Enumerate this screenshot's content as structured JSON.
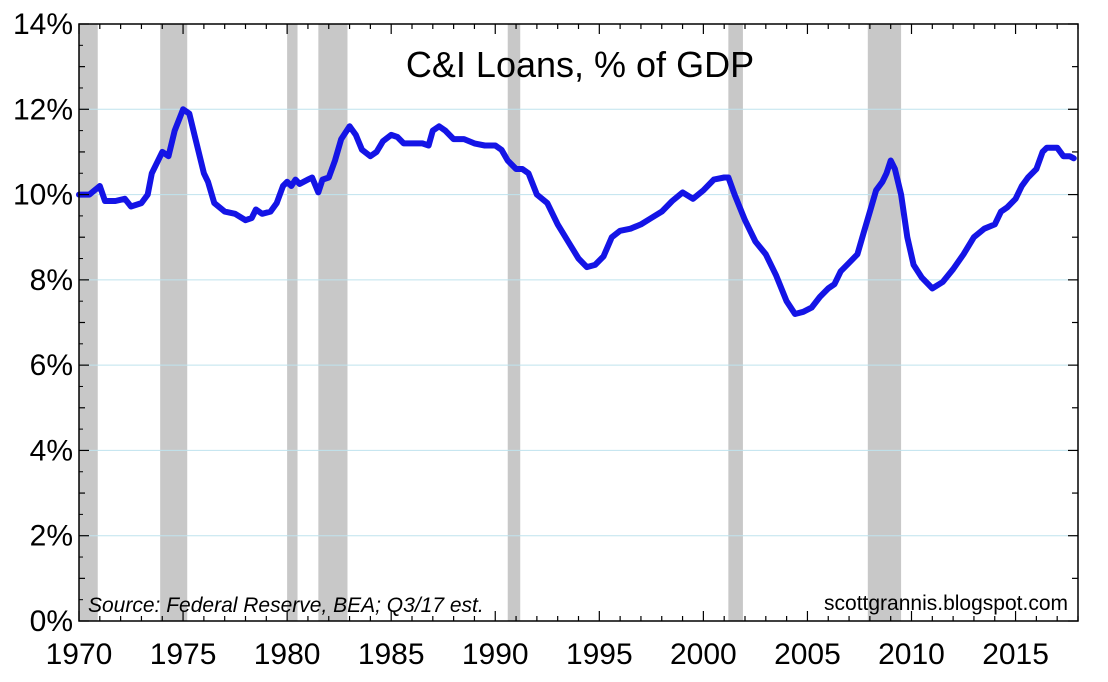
{
  "chart_data": {
    "type": "line",
    "title": "C&I Loans, % of GDP",
    "source": "Source: Federal Reserve, BEA; Q3/17 est.",
    "credit": "scottgrannis.blogspot.com",
    "xlim": [
      1970,
      2018
    ],
    "ylim": [
      0,
      14
    ],
    "x_ticks": [
      1970,
      1975,
      1980,
      1985,
      1990,
      1995,
      2000,
      2005,
      2010,
      2015
    ],
    "x_tick_labels": [
      "1970",
      "1975",
      "1980",
      "1985",
      "1990",
      "1995",
      "2000",
      "2005",
      "2010",
      "2015"
    ],
    "y_ticks": [
      0,
      2,
      4,
      6,
      8,
      10,
      12,
      14
    ],
    "y_tick_labels": [
      "0%",
      "2%",
      "4%",
      "6%",
      "8%",
      "10%",
      "12%",
      "14%"
    ],
    "grid": "horizontal",
    "recessions": [
      [
        1970.0,
        1970.9
      ],
      [
        1973.9,
        1975.2
      ],
      [
        1980.0,
        1980.5
      ],
      [
        1981.5,
        1982.9
      ],
      [
        1990.6,
        1991.2
      ],
      [
        2001.2,
        2001.9
      ],
      [
        2007.9,
        2009.5
      ]
    ],
    "series": [
      {
        "color": "#1414e6",
        "points": [
          [
            1970.0,
            10.0
          ],
          [
            1970.5,
            10.0
          ],
          [
            1971.0,
            10.2
          ],
          [
            1971.25,
            9.85
          ],
          [
            1971.75,
            9.85
          ],
          [
            1972.2,
            9.9
          ],
          [
            1972.5,
            9.72
          ],
          [
            1973.0,
            9.8
          ],
          [
            1973.3,
            10.0
          ],
          [
            1973.5,
            10.5
          ],
          [
            1974.0,
            11.0
          ],
          [
            1974.3,
            10.9
          ],
          [
            1974.6,
            11.5
          ],
          [
            1975.0,
            12.0
          ],
          [
            1975.3,
            11.9
          ],
          [
            1975.6,
            11.3
          ],
          [
            1976.0,
            10.5
          ],
          [
            1976.2,
            10.3
          ],
          [
            1976.5,
            9.8
          ],
          [
            1977.0,
            9.6
          ],
          [
            1977.5,
            9.55
          ],
          [
            1978.0,
            9.4
          ],
          [
            1978.3,
            9.45
          ],
          [
            1978.5,
            9.65
          ],
          [
            1978.8,
            9.55
          ],
          [
            1979.2,
            9.6
          ],
          [
            1979.5,
            9.8
          ],
          [
            1979.8,
            10.2
          ],
          [
            1980.0,
            10.3
          ],
          [
            1980.2,
            10.2
          ],
          [
            1980.4,
            10.35
          ],
          [
            1980.6,
            10.25
          ],
          [
            1981.0,
            10.35
          ],
          [
            1981.2,
            10.4
          ],
          [
            1981.5,
            10.05
          ],
          [
            1981.7,
            10.35
          ],
          [
            1982.0,
            10.4
          ],
          [
            1982.3,
            10.8
          ],
          [
            1982.6,
            11.3
          ],
          [
            1983.0,
            11.6
          ],
          [
            1983.3,
            11.4
          ],
          [
            1983.6,
            11.05
          ],
          [
            1984.0,
            10.9
          ],
          [
            1984.3,
            11.0
          ],
          [
            1984.6,
            11.25
          ],
          [
            1985.0,
            11.4
          ],
          [
            1985.3,
            11.35
          ],
          [
            1985.6,
            11.2
          ],
          [
            1986.0,
            11.2
          ],
          [
            1986.5,
            11.2
          ],
          [
            1986.8,
            11.15
          ],
          [
            1987.0,
            11.5
          ],
          [
            1987.3,
            11.6
          ],
          [
            1987.6,
            11.5
          ],
          [
            1988.0,
            11.3
          ],
          [
            1988.5,
            11.3
          ],
          [
            1989.0,
            11.2
          ],
          [
            1989.5,
            11.15
          ],
          [
            1990.0,
            11.15
          ],
          [
            1990.3,
            11.05
          ],
          [
            1990.6,
            10.8
          ],
          [
            1991.0,
            10.6
          ],
          [
            1991.3,
            10.6
          ],
          [
            1991.6,
            10.5
          ],
          [
            1992.0,
            10.0
          ],
          [
            1992.5,
            9.8
          ],
          [
            1993.0,
            9.3
          ],
          [
            1993.5,
            8.9
          ],
          [
            1994.0,
            8.5
          ],
          [
            1994.4,
            8.3
          ],
          [
            1994.8,
            8.35
          ],
          [
            1995.2,
            8.55
          ],
          [
            1995.6,
            9.0
          ],
          [
            1996.0,
            9.15
          ],
          [
            1996.5,
            9.2
          ],
          [
            1997.0,
            9.3
          ],
          [
            1997.5,
            9.45
          ],
          [
            1998.0,
            9.6
          ],
          [
            1998.5,
            9.85
          ],
          [
            1999.0,
            10.05
          ],
          [
            1999.5,
            9.9
          ],
          [
            2000.0,
            10.1
          ],
          [
            2000.5,
            10.35
          ],
          [
            2001.0,
            10.4
          ],
          [
            2001.2,
            10.4
          ],
          [
            2001.5,
            10.0
          ],
          [
            2002.0,
            9.4
          ],
          [
            2002.5,
            8.9
          ],
          [
            2003.0,
            8.6
          ],
          [
            2003.5,
            8.1
          ],
          [
            2004.0,
            7.5
          ],
          [
            2004.4,
            7.2
          ],
          [
            2004.8,
            7.25
          ],
          [
            2005.2,
            7.35
          ],
          [
            2005.6,
            7.6
          ],
          [
            2006.0,
            7.8
          ],
          [
            2006.3,
            7.9
          ],
          [
            2006.6,
            8.2
          ],
          [
            2007.0,
            8.4
          ],
          [
            2007.4,
            8.6
          ],
          [
            2007.7,
            9.1
          ],
          [
            2008.0,
            9.6
          ],
          [
            2008.3,
            10.1
          ],
          [
            2008.6,
            10.3
          ],
          [
            2008.8,
            10.5
          ],
          [
            2009.0,
            10.8
          ],
          [
            2009.2,
            10.6
          ],
          [
            2009.5,
            10.0
          ],
          [
            2009.8,
            9.0
          ],
          [
            2010.1,
            8.35
          ],
          [
            2010.5,
            8.05
          ],
          [
            2011.0,
            7.8
          ],
          [
            2011.5,
            7.95
          ],
          [
            2012.0,
            8.25
          ],
          [
            2012.5,
            8.6
          ],
          [
            2013.0,
            9.0
          ],
          [
            2013.5,
            9.2
          ],
          [
            2014.0,
            9.3
          ],
          [
            2014.3,
            9.6
          ],
          [
            2014.6,
            9.7
          ],
          [
            2015.0,
            9.9
          ],
          [
            2015.3,
            10.2
          ],
          [
            2015.6,
            10.4
          ],
          [
            2016.0,
            10.6
          ],
          [
            2016.3,
            11.0
          ],
          [
            2016.5,
            11.1
          ],
          [
            2017.0,
            11.1
          ],
          [
            2017.3,
            10.9
          ],
          [
            2017.6,
            10.9
          ],
          [
            2017.8,
            10.85
          ]
        ]
      }
    ]
  }
}
